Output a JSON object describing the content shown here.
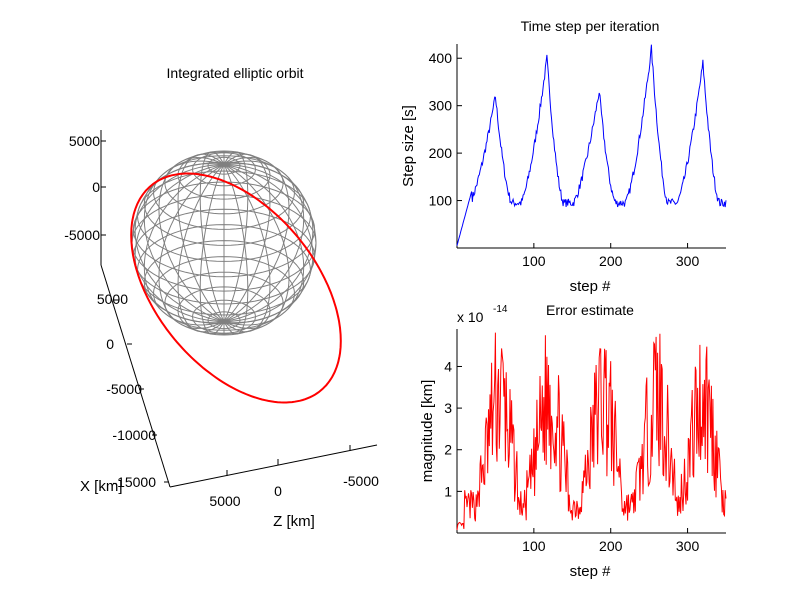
{
  "chart_data": [
    {
      "type": "line3d",
      "title": "Integrated elliptic orbit",
      "axes": {
        "y_ticks": [
          "5000",
          "0",
          "-5000"
        ],
        "x_ticks": [
          "5000",
          "0",
          "-5000",
          "-10000",
          "-15000"
        ],
        "z_ticks": [
          "5000",
          "0",
          "-5000"
        ],
        "xlabel": "X [km]",
        "zlabel": "Z [km]"
      },
      "grid": false,
      "series": [
        {
          "kind": "sphere-wireframe",
          "color": "#808080"
        },
        {
          "kind": "orbit",
          "color": "#ff0000"
        }
      ]
    },
    {
      "type": "line",
      "title": "Time step per iteration",
      "xlabel": "step #",
      "ylabel": "Step size [s]",
      "xlim": [
        0,
        350
      ],
      "ylim": [
        0,
        430
      ],
      "xticks": [
        "100",
        "200",
        "300"
      ],
      "yticks": [
        "100",
        "200",
        "300",
        "400"
      ],
      "color": "#0000ff",
      "grid": false,
      "profile": {
        "baseline": 95,
        "peaks": [
          {
            "x": 50,
            "y": 320
          },
          {
            "x": 117,
            "y": 400
          },
          {
            "x": 185,
            "y": 330
          },
          {
            "x": 253,
            "y": 420
          },
          {
            "x": 320,
            "y": 390
          }
        ]
      }
    },
    {
      "type": "line",
      "title": "Error estimate",
      "scale_label": "x 10",
      "scale_exp": "-14",
      "xlabel": "step #",
      "ylabel": "magnitude [km]",
      "xlim": [
        0,
        350
      ],
      "ylim": [
        0,
        4.9
      ],
      "xticks": [
        "100",
        "200",
        "300"
      ],
      "yticks": [
        "1",
        "2",
        "3",
        "4"
      ],
      "color": "#ff0000",
      "grid": false
    }
  ]
}
